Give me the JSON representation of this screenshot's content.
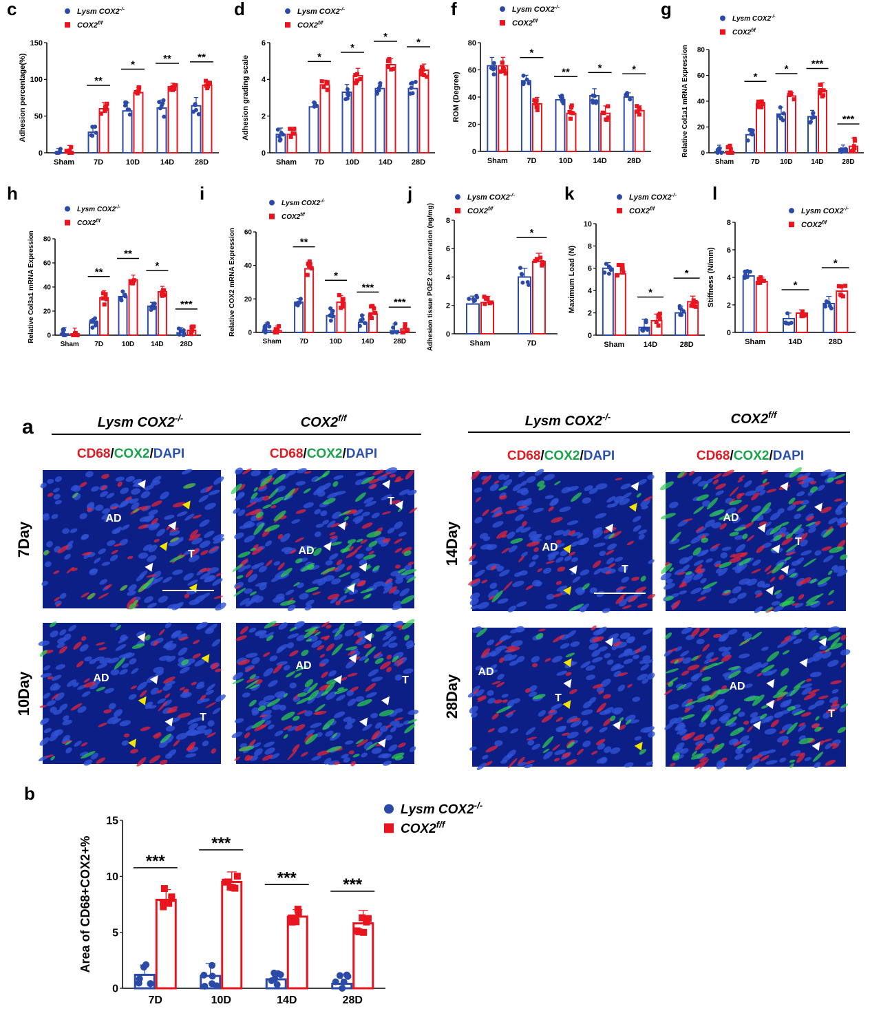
{
  "colors": {
    "blue": "#2b4aa8",
    "red": "#e8141e",
    "yellow": "#f0e400",
    "white": "#ffffff"
  },
  "legend": {
    "group1_name": "Lysm COX2",
    "group1_sup": "-/-",
    "group2_name": "COX2",
    "group2_sup": "f/f"
  },
  "chart_data": [
    {
      "id": "c",
      "type": "bar",
      "ylabel": "Adhesion percentage(%)",
      "ylim": [
        0,
        150
      ],
      "yticks": [
        0,
        50,
        100,
        150
      ],
      "categories": [
        "Sham",
        "7D",
        "10D",
        "14D",
        "28D"
      ],
      "series": [
        {
          "name": "Lysm COX2-/-",
          "values": [
            0,
            28,
            57,
            61,
            64
          ]
        },
        {
          "name": "COX2f/f",
          "values": [
            0,
            60,
            82,
            90,
            92
          ]
        }
      ],
      "sig": [
        "",
        "**",
        "*",
        "**",
        "**"
      ]
    },
    {
      "id": "d",
      "type": "bar",
      "ylabel": "Adhesion grading scale",
      "ylim": [
        0,
        6
      ],
      "yticks": [
        0,
        2,
        4,
        6
      ],
      "categories": [
        "Sham",
        "7D",
        "10D",
        "14D",
        "28D"
      ],
      "series": [
        {
          "name": "Lysm COX2-/-",
          "values": [
            1,
            2.5,
            3.3,
            3.5,
            3.5
          ]
        },
        {
          "name": "COX2f/f",
          "values": [
            1,
            3.7,
            4.2,
            4.8,
            4.5
          ]
        }
      ],
      "sig": [
        "",
        "*",
        "*",
        "*",
        "*"
      ]
    },
    {
      "id": "f",
      "type": "bar",
      "ylabel": "ROM (Degree)",
      "ylim": [
        0,
        80
      ],
      "yticks": [
        0,
        20,
        40,
        60,
        80
      ],
      "categories": [
        "Sham",
        "7D",
        "10D",
        "14D",
        "28D"
      ],
      "series": [
        {
          "name": "Lysm COX2-/-",
          "values": [
            63,
            52,
            38,
            41,
            40
          ]
        },
        {
          "name": "COX2f/f",
          "values": [
            63,
            35,
            28,
            28,
            30
          ]
        }
      ],
      "sig": [
        "",
        "*",
        "**",
        "*",
        "*"
      ]
    },
    {
      "id": "g",
      "type": "bar",
      "ylabel": "Relative Col1a1 mRNA Expression",
      "ylim": [
        0,
        80
      ],
      "yticks": [
        0,
        20,
        40,
        60,
        80
      ],
      "categories": [
        "Sham",
        "7D",
        "10D",
        "14D",
        "28D"
      ],
      "series": [
        {
          "name": "Lysm COX2-/-",
          "values": [
            1,
            14,
            30,
            28,
            3
          ]
        },
        {
          "name": "COX2f/f",
          "values": [
            1,
            38,
            44,
            48,
            5
          ]
        }
      ],
      "sig": [
        "",
        "*",
        "*",
        "***",
        "***"
      ]
    },
    {
      "id": "h",
      "type": "bar",
      "ylabel": "Relative Col3a1 mRNA Expression",
      "ylim": [
        0,
        80
      ],
      "yticks": [
        0,
        20,
        40,
        60,
        80
      ],
      "categories": [
        "Sham",
        "7D",
        "10D",
        "14D",
        "28D"
      ],
      "series": [
        {
          "name": "Lysm COX2-/-",
          "values": [
            1,
            10,
            32,
            24,
            2
          ]
        },
        {
          "name": "COX2f/f",
          "values": [
            1,
            31,
            46,
            36,
            4
          ]
        }
      ],
      "sig": [
        "",
        "**",
        "**",
        "*",
        "***"
      ]
    },
    {
      "id": "i",
      "type": "bar",
      "ylabel": "Relative COX2 mRNA Expression",
      "ylim": [
        0,
        60
      ],
      "yticks": [
        0,
        20,
        40,
        60
      ],
      "categories": [
        "Sham",
        "7D",
        "10D",
        "14D",
        "28D"
      ],
      "series": [
        {
          "name": "Lysm COX2-/-",
          "values": [
            1,
            18,
            10,
            6,
            1
          ]
        },
        {
          "name": "COX2f/f",
          "values": [
            1,
            38,
            18,
            11,
            2
          ]
        }
      ],
      "sig": [
        "",
        "**",
        "*",
        "***",
        "***"
      ]
    },
    {
      "id": "j",
      "type": "bar",
      "ylabel": "Adhesion tissue PGE2 concentration (ng/mg)",
      "ylim": [
        0,
        8
      ],
      "yticks": [
        0,
        2,
        4,
        6,
        8
      ],
      "categories": [
        "Sham",
        "7D"
      ],
      "series": [
        {
          "name": "Lysm COX2-/-",
          "values": [
            2.1,
            4.0
          ]
        },
        {
          "name": "COX2f/f",
          "values": [
            2.2,
            5.1
          ]
        }
      ],
      "sig": [
        "",
        "*"
      ]
    },
    {
      "id": "k",
      "type": "bar",
      "ylabel": "Maximum Load (N)",
      "ylim": [
        0,
        10
      ],
      "yticks": [
        0,
        2,
        4,
        6,
        8,
        10
      ],
      "categories": [
        "Sham",
        "14D",
        "28D"
      ],
      "series": [
        {
          "name": "Lysm COX2-/-",
          "values": [
            6.0,
            0.7,
            2.0
          ]
        },
        {
          "name": "COX2f/f",
          "values": [
            5.5,
            1.3,
            3.0
          ]
        }
      ],
      "sig": [
        "",
        "*",
        "*"
      ]
    },
    {
      "id": "l",
      "type": "bar",
      "ylabel": "Stiffness (N/mm)",
      "ylim": [
        0,
        8
      ],
      "yticks": [
        0,
        2,
        4,
        6,
        8
      ],
      "categories": [
        "Sham",
        "14D",
        "28D"
      ],
      "series": [
        {
          "name": "Lysm COX2-/-",
          "values": [
            4.1,
            1.0,
            2.1
          ]
        },
        {
          "name": "COX2f/f",
          "values": [
            3.7,
            1.4,
            3.0
          ]
        }
      ],
      "sig": [
        "",
        "*",
        "*"
      ]
    },
    {
      "id": "b",
      "type": "bar",
      "ylabel": "Area of CD68+COX2+%",
      "ylim": [
        0,
        15
      ],
      "yticks": [
        0,
        5,
        10,
        15
      ],
      "categories": [
        "7D",
        "10D",
        "14D",
        "28D"
      ],
      "series": [
        {
          "name": "Lysm COX2-/-",
          "values": [
            1.2,
            1.1,
            0.8,
            0.4
          ]
        },
        {
          "name": "COX2f/f",
          "values": [
            7.9,
            9.5,
            6.4,
            5.8
          ]
        }
      ],
      "sig": [
        "***",
        "***",
        "***",
        "***"
      ]
    }
  ],
  "panel_a": {
    "letter": "a",
    "groups": [
      "Lysm COX2-/-",
      "COX2f/f"
    ],
    "stain": {
      "cd68": "CD68",
      "cox2": "COX2",
      "dapi": "DAPI",
      "sep": "/"
    },
    "days": [
      "7Day",
      "10Day",
      "14Day",
      "28Day"
    ],
    "tissue_labels": {
      "adhesion": "AD",
      "tendon": "T"
    }
  }
}
